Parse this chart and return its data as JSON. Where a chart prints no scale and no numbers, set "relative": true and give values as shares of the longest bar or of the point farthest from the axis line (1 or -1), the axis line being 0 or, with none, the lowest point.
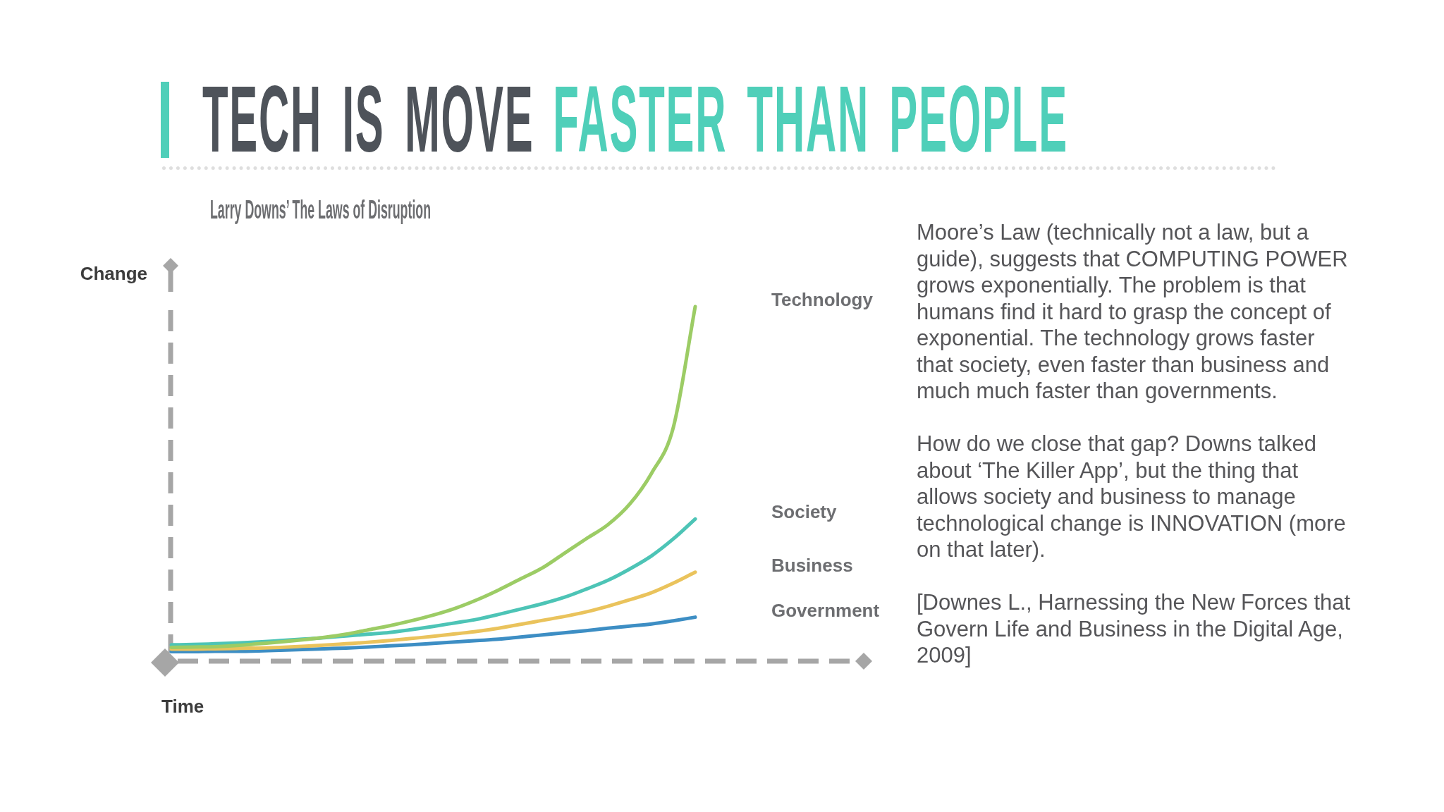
{
  "chart_data": {
    "type": "line",
    "title": "TECH IS MOVE FASTER THAN PEOPLE",
    "subtitle": "Larry Downs’ The Laws of Disruption",
    "xlabel": "Time",
    "ylabel": "Change",
    "relative": true,
    "categories": [
      null,
      null,
      null,
      null,
      null,
      null,
      null,
      null,
      null,
      null,
      null,
      null,
      null,
      null,
      null,
      null,
      null,
      null,
      null,
      null,
      null,
      null,
      null,
      null,
      null
    ],
    "series": [
      {
        "name": "Technology",
        "color": "#9ccc65",
        "values": [
          0.039,
          0.04,
          0.041,
          0.044,
          0.049,
          0.054,
          0.06,
          0.067,
          0.076,
          0.088,
          0.1,
          0.114,
          0.13,
          0.149,
          0.173,
          0.201,
          0.232,
          0.263,
          0.304,
          0.345,
          0.385,
          0.443,
          0.53,
          0.66,
          1.0
        ]
      },
      {
        "name": "Society",
        "color": "#4dc4b6",
        "values": [
          0.046,
          0.047,
          0.049,
          0.051,
          0.054,
          0.058,
          0.062,
          0.066,
          0.071,
          0.076,
          0.081,
          0.089,
          0.098,
          0.108,
          0.118,
          0.132,
          0.147,
          0.162,
          0.18,
          0.203,
          0.228,
          0.26,
          0.297,
          0.345,
          0.401
        ]
      },
      {
        "name": "Business",
        "color": "#eac35c",
        "values": [
          0.034,
          0.034,
          0.035,
          0.036,
          0.037,
          0.039,
          0.042,
          0.045,
          0.049,
          0.053,
          0.058,
          0.064,
          0.07,
          0.077,
          0.084,
          0.093,
          0.104,
          0.115,
          0.126,
          0.139,
          0.155,
          0.173,
          0.193,
          0.22,
          0.251
        ]
      },
      {
        "name": "Government",
        "color": "#3d8ec4",
        "values": [
          0.027,
          0.027,
          0.028,
          0.028,
          0.029,
          0.031,
          0.033,
          0.035,
          0.037,
          0.04,
          0.043,
          0.046,
          0.05,
          0.054,
          0.058,
          0.062,
          0.068,
          0.074,
          0.08,
          0.086,
          0.093,
          0.099,
          0.105,
          0.114,
          0.124
        ]
      }
    ],
    "annotations": [
      "Moore’s Law (technically not a law, but a guide), suggests that COMPUTING POWER grows exponentially. The problem is that humans find it hard to grasp the concept of exponential. The technology grows faster that society, even faster than business and much much faster than governments.",
      "How do we close that gap? Downs talked about ‘The Killer App’, but the thing that allows society and business to manage technological change is INNOVATION (more on that later).",
      "[Downes L., Harnessing the New Forces that Govern Life and Business in the Digital Age, 2009]"
    ]
  }
}
